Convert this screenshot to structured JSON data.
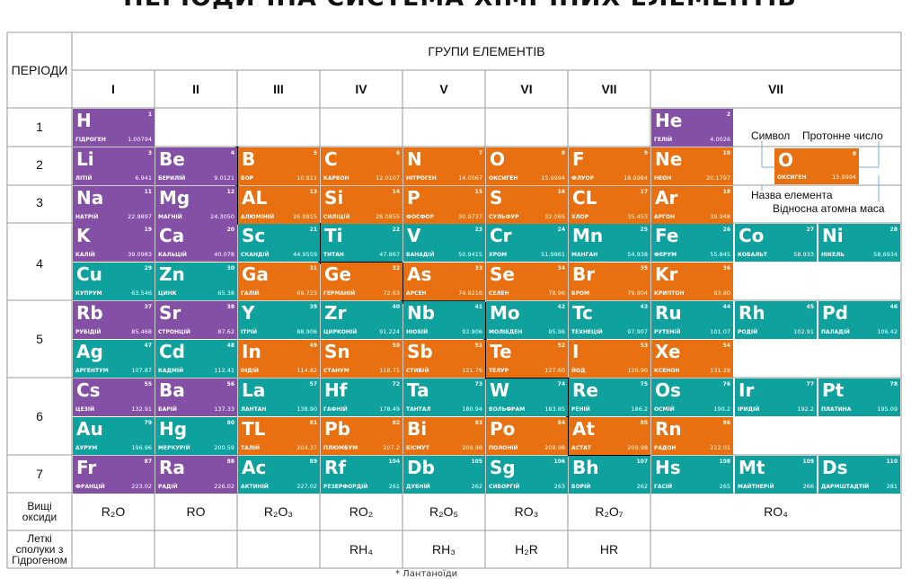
{
  "title": "ПЕРІОДИЧНА СИСТЕМА ХІМІЧНИХ ЕЛЕМЕНТІВ",
  "headers": {
    "periods": "ПЕРІОДИ",
    "groups": "ГРУПИ ЕЛЕМЕНТІВ",
    "group_numerals": [
      "I",
      "II",
      "III",
      "IV",
      "V",
      "VI",
      "VII",
      "VII"
    ],
    "period_numbers": [
      "1",
      "2",
      "3",
      "4",
      "5",
      "6",
      "7"
    ],
    "higher_oxides": "Вищі оксиди",
    "hydrogen_compounds": "Леткі сполуки з Гідрогеном"
  },
  "higher_oxides": [
    {
      "text": "R₂O"
    },
    {
      "text": "RO"
    },
    {
      "text": "R₂O₃"
    },
    {
      "text": "RO₂"
    },
    {
      "text": "R₂O₅"
    },
    {
      "text": "RO₃"
    },
    {
      "text": "R₂O₇"
    },
    {
      "text": "RO₄"
    }
  ],
  "hydrogen_compounds": [
    "RH₄",
    "RH₃",
    "H₂R",
    "HR"
  ],
  "legend": {
    "symbol_label": "Символ",
    "proton_label": "Протонне число",
    "name_label": "Назва елемента",
    "mass_label": "Відносна атомна маса",
    "example": {
      "symbol": "O",
      "number": "8",
      "name": "ОКСИГЕН",
      "mass": "15.9994"
    }
  },
  "bottom_note": "* Лантаноїди",
  "colors": {
    "s_block": "#8350a6",
    "p_block": "#e87010",
    "d_block": "#0fa19e"
  },
  "elements": [
    {
      "r": 0,
      "c": 0,
      "s": "H",
      "n": "1",
      "name": "ГІДРОГЕН",
      "m": "1.00794",
      "t": "s"
    },
    {
      "r": 0,
      "c": 7,
      "s": "He",
      "n": "2",
      "name": "ГЕЛІЙ",
      "m": "4.0026",
      "t": "s"
    },
    {
      "r": 1,
      "c": 0,
      "s": "Li",
      "n": "3",
      "name": "ЛІТІЙ",
      "m": "6.941",
      "t": "s"
    },
    {
      "r": 1,
      "c": 1,
      "s": "Be",
      "n": "4",
      "name": "БЕРИЛІЙ",
      "m": "9.0121",
      "t": "s"
    },
    {
      "r": 1,
      "c": 2,
      "s": "B",
      "n": "5",
      "name": "БОР",
      "m": "10.811",
      "t": "p"
    },
    {
      "r": 1,
      "c": 3,
      "s": "C",
      "n": "6",
      "name": "КАРБОН",
      "m": "12.0107",
      "t": "p"
    },
    {
      "r": 1,
      "c": 4,
      "s": "N",
      "n": "7",
      "name": "НІТРОГЕН",
      "m": "14.0067",
      "t": "p"
    },
    {
      "r": 1,
      "c": 5,
      "s": "O",
      "n": "8",
      "name": "ОКСИГЕН",
      "m": "15.9994",
      "t": "p"
    },
    {
      "r": 1,
      "c": 6,
      "s": "F",
      "n": "9",
      "name": "ФЛУОР",
      "m": "18.9984",
      "t": "p"
    },
    {
      "r": 1,
      "c": 7,
      "s": "Ne",
      "n": "10",
      "name": "НЕОН",
      "m": "20.1797",
      "t": "p"
    },
    {
      "r": 2,
      "c": 0,
      "s": "Na",
      "n": "11",
      "name": "НАТРІЙ",
      "m": "22.9897",
      "t": "s"
    },
    {
      "r": 2,
      "c": 1,
      "s": "Mg",
      "n": "12",
      "name": "МАГНІЙ",
      "m": "24.3050",
      "t": "s"
    },
    {
      "r": 2,
      "c": 2,
      "s": "AL",
      "n": "13",
      "name": "АЛЮМІНІЙ",
      "m": "26.9815",
      "t": "p"
    },
    {
      "r": 2,
      "c": 3,
      "s": "Si",
      "n": "14",
      "name": "СИЛІЦІЙ",
      "m": "28.0855",
      "t": "p"
    },
    {
      "r": 2,
      "c": 4,
      "s": "P",
      "n": "15",
      "name": "ФОСФОР",
      "m": "30.9737",
      "t": "p"
    },
    {
      "r": 2,
      "c": 5,
      "s": "S",
      "n": "16",
      "name": "СУЛЬФУР",
      "m": "32.065",
      "t": "p"
    },
    {
      "r": 2,
      "c": 6,
      "s": "CL",
      "n": "17",
      "name": "ХЛОР",
      "m": "35.453",
      "t": "p"
    },
    {
      "r": 2,
      "c": 7,
      "s": "Ar",
      "n": "18",
      "name": "АРГОН",
      "m": "39.948",
      "t": "p"
    },
    {
      "r": 3,
      "c": 0,
      "s": "K",
      "n": "19",
      "name": "КАЛІЙ",
      "m": "39.0983",
      "t": "s"
    },
    {
      "r": 3,
      "c": 1,
      "s": "Ca",
      "n": "20",
      "name": "КАЛЬЦІЙ",
      "m": "40.078",
      "t": "s"
    },
    {
      "r": 3,
      "c": 2,
      "s": "Sc",
      "n": "21",
      "name": "СКАНДІЙ",
      "m": "44.9559",
      "t": "d"
    },
    {
      "r": 3,
      "c": 3,
      "s": "Ti",
      "n": "22",
      "name": "ТИТАН",
      "m": "47.867",
      "t": "d"
    },
    {
      "r": 3,
      "c": 4,
      "s": "V",
      "n": "23",
      "name": "ВАНАДІЙ",
      "m": "50.9415",
      "t": "d"
    },
    {
      "r": 3,
      "c": 5,
      "s": "Cr",
      "n": "24",
      "name": "ХРОМ",
      "m": "51.9961",
      "t": "d"
    },
    {
      "r": 3,
      "c": 6,
      "s": "Mn",
      "n": "25",
      "name": "МАНГАН",
      "m": "54.938",
      "t": "d"
    },
    {
      "r": 3,
      "c": 7,
      "s": "Fe",
      "n": "26",
      "name": "ФЕРУМ",
      "m": "55.845",
      "t": "d"
    },
    {
      "r": 3,
      "c": 8,
      "s": "Co",
      "n": "27",
      "name": "КОБАЛЬТ",
      "m": "58.933",
      "t": "d"
    },
    {
      "r": 3,
      "c": 9,
      "s": "Ni",
      "n": "28",
      "name": "НІКЕЛЬ",
      "m": "58.6934",
      "t": "d"
    },
    {
      "r": 4,
      "c": 0,
      "s": "Cu",
      "n": "29",
      "name": "КУПРУМ",
      "m": "63.546",
      "t": "d"
    },
    {
      "r": 4,
      "c": 1,
      "s": "Zn",
      "n": "30",
      "name": "ЦИНК",
      "m": "65.38",
      "t": "d"
    },
    {
      "r": 4,
      "c": 2,
      "s": "Ga",
      "n": "31",
      "name": "ГАЛІЙ",
      "m": "69.723",
      "t": "p"
    },
    {
      "r": 4,
      "c": 3,
      "s": "Ge",
      "n": "32",
      "name": "ГЕРМАНІЙ",
      "m": "72.63",
      "t": "p"
    },
    {
      "r": 4,
      "c": 4,
      "s": "As",
      "n": "33",
      "name": "АРСЕН",
      "m": "74.9216",
      "t": "p"
    },
    {
      "r": 4,
      "c": 5,
      "s": "Se",
      "n": "34",
      "name": "СЕЛЕН",
      "m": "78.96",
      "t": "p"
    },
    {
      "r": 4,
      "c": 6,
      "s": "Br",
      "n": "35",
      "name": "БРОМ",
      "m": "79.904",
      "t": "p"
    },
    {
      "r": 4,
      "c": 7,
      "s": "Kr",
      "n": "36",
      "name": "КРИПТОН",
      "m": "83.80",
      "t": "p"
    },
    {
      "r": 5,
      "c": 0,
      "s": "Rb",
      "n": "37",
      "name": "РУБІДІЙ",
      "m": "85.468",
      "t": "s"
    },
    {
      "r": 5,
      "c": 1,
      "s": "Sr",
      "n": "38",
      "name": "СТРОНЦІЙ",
      "m": "87.62",
      "t": "s"
    },
    {
      "r": 5,
      "c": 2,
      "s": "Y",
      "n": "39",
      "name": "ІТРІЙ",
      "m": "88.906",
      "t": "d"
    },
    {
      "r": 5,
      "c": 3,
      "s": "Zr",
      "n": "40",
      "name": "ЦИРКОНІЙ",
      "m": "91.224",
      "t": "d"
    },
    {
      "r": 5,
      "c": 4,
      "s": "Nb",
      "n": "41",
      "name": "НІОБІЙ",
      "m": "92.906",
      "t": "d"
    },
    {
      "r": 5,
      "c": 5,
      "s": "Mo",
      "n": "42",
      "name": "МОЛІБДЕН",
      "m": "95.96",
      "t": "d"
    },
    {
      "r": 5,
      "c": 6,
      "s": "Tc",
      "n": "43",
      "name": "ТЕХНЕЦІЙ",
      "m": "97.907",
      "t": "d"
    },
    {
      "r": 5,
      "c": 7,
      "s": "Ru",
      "n": "44",
      "name": "РУТЕНІЙ",
      "m": "101.07",
      "t": "d"
    },
    {
      "r": 5,
      "c": 8,
      "s": "Rh",
      "n": "45",
      "name": "РОДІЙ",
      "m": "102.91",
      "t": "d"
    },
    {
      "r": 5,
      "c": 9,
      "s": "Pd",
      "n": "46",
      "name": "ПАЛАДІЙ",
      "m": "106.42",
      "t": "d"
    },
    {
      "r": 6,
      "c": 0,
      "s": "Ag",
      "n": "47",
      "name": "АРГЕНТУМ",
      "m": "107.87",
      "t": "d"
    },
    {
      "r": 6,
      "c": 1,
      "s": "Cd",
      "n": "48",
      "name": "КАДМІЙ",
      "m": "112.41",
      "t": "d"
    },
    {
      "r": 6,
      "c": 2,
      "s": "In",
      "n": "49",
      "name": "ІНДІЙ",
      "m": "114.82",
      "t": "p"
    },
    {
      "r": 6,
      "c": 3,
      "s": "Sn",
      "n": "50",
      "name": "СТАНУМ",
      "m": "118.71",
      "t": "p"
    },
    {
      "r": 6,
      "c": 4,
      "s": "Sb",
      "n": "51",
      "name": "СТИБІЙ",
      "m": "121.76",
      "t": "p"
    },
    {
      "r": 6,
      "c": 5,
      "s": "Te",
      "n": "52",
      "name": "ТЕЛУР",
      "m": "127.60",
      "t": "p"
    },
    {
      "r": 6,
      "c": 6,
      "s": "I",
      "n": "53",
      "name": "ЙОД",
      "m": "126.90",
      "t": "p"
    },
    {
      "r": 6,
      "c": 7,
      "s": "Xe",
      "n": "54",
      "name": "КСЕНОН",
      "m": "131.29",
      "t": "p"
    },
    {
      "r": 7,
      "c": 0,
      "s": "Cs",
      "n": "55",
      "name": "ЦЕЗІЙ",
      "m": "132.91",
      "t": "s"
    },
    {
      "r": 7,
      "c": 1,
      "s": "Ba",
      "n": "56",
      "name": "БАРІЙ",
      "m": "137.33",
      "t": "s"
    },
    {
      "r": 7,
      "c": 2,
      "s": "La",
      "n": "57",
      "name": "ЛАНТАН",
      "m": "138.90",
      "t": "d"
    },
    {
      "r": 7,
      "c": 3,
      "s": "Hf",
      "n": "72",
      "name": "ГАФНІЙ",
      "m": "178.49",
      "t": "d"
    },
    {
      "r": 7,
      "c": 4,
      "s": "Ta",
      "n": "73",
      "name": "ТАНТАЛ",
      "m": "180.94",
      "t": "d"
    },
    {
      "r": 7,
      "c": 5,
      "s": "W",
      "n": "74",
      "name": "ВОЛЬФРАМ",
      "m": "183.85",
      "t": "d"
    },
    {
      "r": 7,
      "c": 6,
      "s": "Re",
      "n": "75",
      "name": "РЕНІЙ",
      "m": "186.2",
      "t": "d"
    },
    {
      "r": 7,
      "c": 7,
      "s": "Os",
      "n": "76",
      "name": "ОСМІЙ",
      "m": "190.2",
      "t": "d"
    },
    {
      "r": 7,
      "c": 8,
      "s": "Ir",
      "n": "77",
      "name": "ІРИДІЙ",
      "m": "192.2",
      "t": "d"
    },
    {
      "r": 7,
      "c": 9,
      "s": "Pt",
      "n": "78",
      "name": "ПЛАТИНА",
      "m": "195.09",
      "t": "d"
    },
    {
      "r": 8,
      "c": 0,
      "s": "Au",
      "n": "79",
      "name": "АУРУМ",
      "m": "196.96",
      "t": "d"
    },
    {
      "r": 8,
      "c": 1,
      "s": "Hg",
      "n": "80",
      "name": "МЕРКУРІЙ",
      "m": "200.59",
      "t": "d"
    },
    {
      "r": 8,
      "c": 2,
      "s": "TL",
      "n": "81",
      "name": "ТАЛІЙ",
      "m": "204.37",
      "t": "p"
    },
    {
      "r": 8,
      "c": 3,
      "s": "Pb",
      "n": "82",
      "name": "ПЛЮМБУМ",
      "m": "207.2",
      "t": "p"
    },
    {
      "r": 8,
      "c": 4,
      "s": "Bi",
      "n": "83",
      "name": "БІСМУТ",
      "m": "208.98",
      "t": "p"
    },
    {
      "r": 8,
      "c": 5,
      "s": "Po",
      "n": "84",
      "name": "ПОЛОНІЙ",
      "m": "208.98",
      "t": "p"
    },
    {
      "r": 8,
      "c": 6,
      "s": "At",
      "n": "85",
      "name": "АСТАТ",
      "m": "209.98",
      "t": "p"
    },
    {
      "r": 8,
      "c": 7,
      "s": "Rn",
      "n": "86",
      "name": "РАДОН",
      "m": "222.01",
      "t": "p"
    },
    {
      "r": 9,
      "c": 0,
      "s": "Fr",
      "n": "87",
      "name": "ФРАНЦІЙ",
      "m": "223.02",
      "t": "s"
    },
    {
      "r": 9,
      "c": 1,
      "s": "Ra",
      "n": "88",
      "name": "РАДІЙ",
      "m": "226.02",
      "t": "s"
    },
    {
      "r": 9,
      "c": 2,
      "s": "Ac",
      "n": "89",
      "name": "АКТИНІЙ",
      "m": "227.02",
      "t": "d"
    },
    {
      "r": 9,
      "c": 3,
      "s": "Rf",
      "n": "104",
      "name": "РЕЗЕРФОРДІЙ",
      "m": "261",
      "t": "d"
    },
    {
      "r": 9,
      "c": 4,
      "s": "Db",
      "n": "105",
      "name": "ДУБНІЙ",
      "m": "262",
      "t": "d"
    },
    {
      "r": 9,
      "c": 5,
      "s": "Sg",
      "n": "106",
      "name": "СИБОРГІЙ",
      "m": "263",
      "t": "d"
    },
    {
      "r": 9,
      "c": 6,
      "s": "Bh",
      "n": "107",
      "name": "БОРІЙ",
      "m": "262",
      "t": "d"
    },
    {
      "r": 9,
      "c": 7,
      "s": "Hs",
      "n": "108",
      "name": "ГАСІЙ",
      "m": "265",
      "t": "d"
    },
    {
      "r": 9,
      "c": 8,
      "s": "Mt",
      "n": "109",
      "name": "МАЙТНЕРІЙ",
      "m": "266",
      "t": "d"
    },
    {
      "r": 9,
      "c": 9,
      "s": "Ds",
      "n": "110",
      "name": "ДАРМШТАДТІЙ",
      "m": "281",
      "t": "d"
    }
  ]
}
